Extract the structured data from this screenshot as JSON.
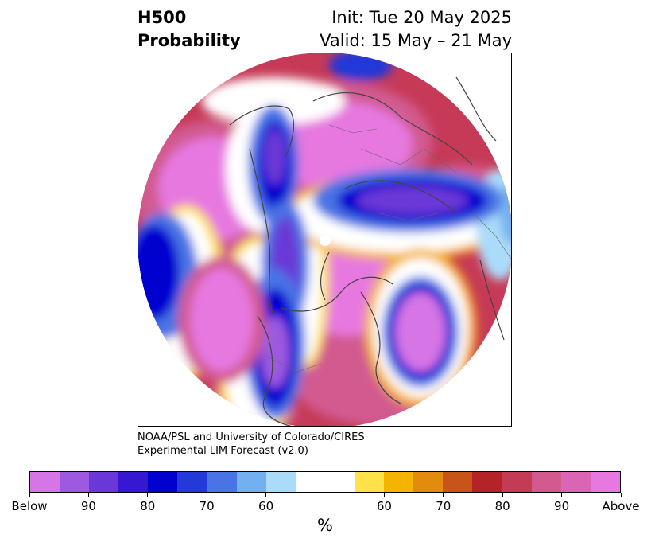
{
  "title": {
    "left_line1": "H500",
    "left_line2": "Probability",
    "right_line1": "Init: Tue 20 May 2025",
    "right_line2": "Valid: 15 May – 21 May"
  },
  "credit": {
    "line1": "NOAA/PSL and University of Colorado/CIRES",
    "line2": "Experimental LIM Forecast (v2.0)"
  },
  "colorbar": {
    "colors": [
      "#d675e6",
      "#9d5ae0",
      "#6a38d6",
      "#3618d2",
      "#0000cf",
      "#2339d8",
      "#4a73e5",
      "#73b0f0",
      "#aadcf9",
      "#ffffff",
      "#ffffff",
      "#ffe14a",
      "#f5b400",
      "#e38b0e",
      "#c9541a",
      "#b22428",
      "#c43b55",
      "#d25a8f",
      "#dc64b4",
      "#e678e0"
    ],
    "labels": [
      "Below",
      "90",
      "80",
      "70",
      "60",
      "60",
      "70",
      "80",
      "90",
      "Above"
    ],
    "unit": "%"
  }
}
